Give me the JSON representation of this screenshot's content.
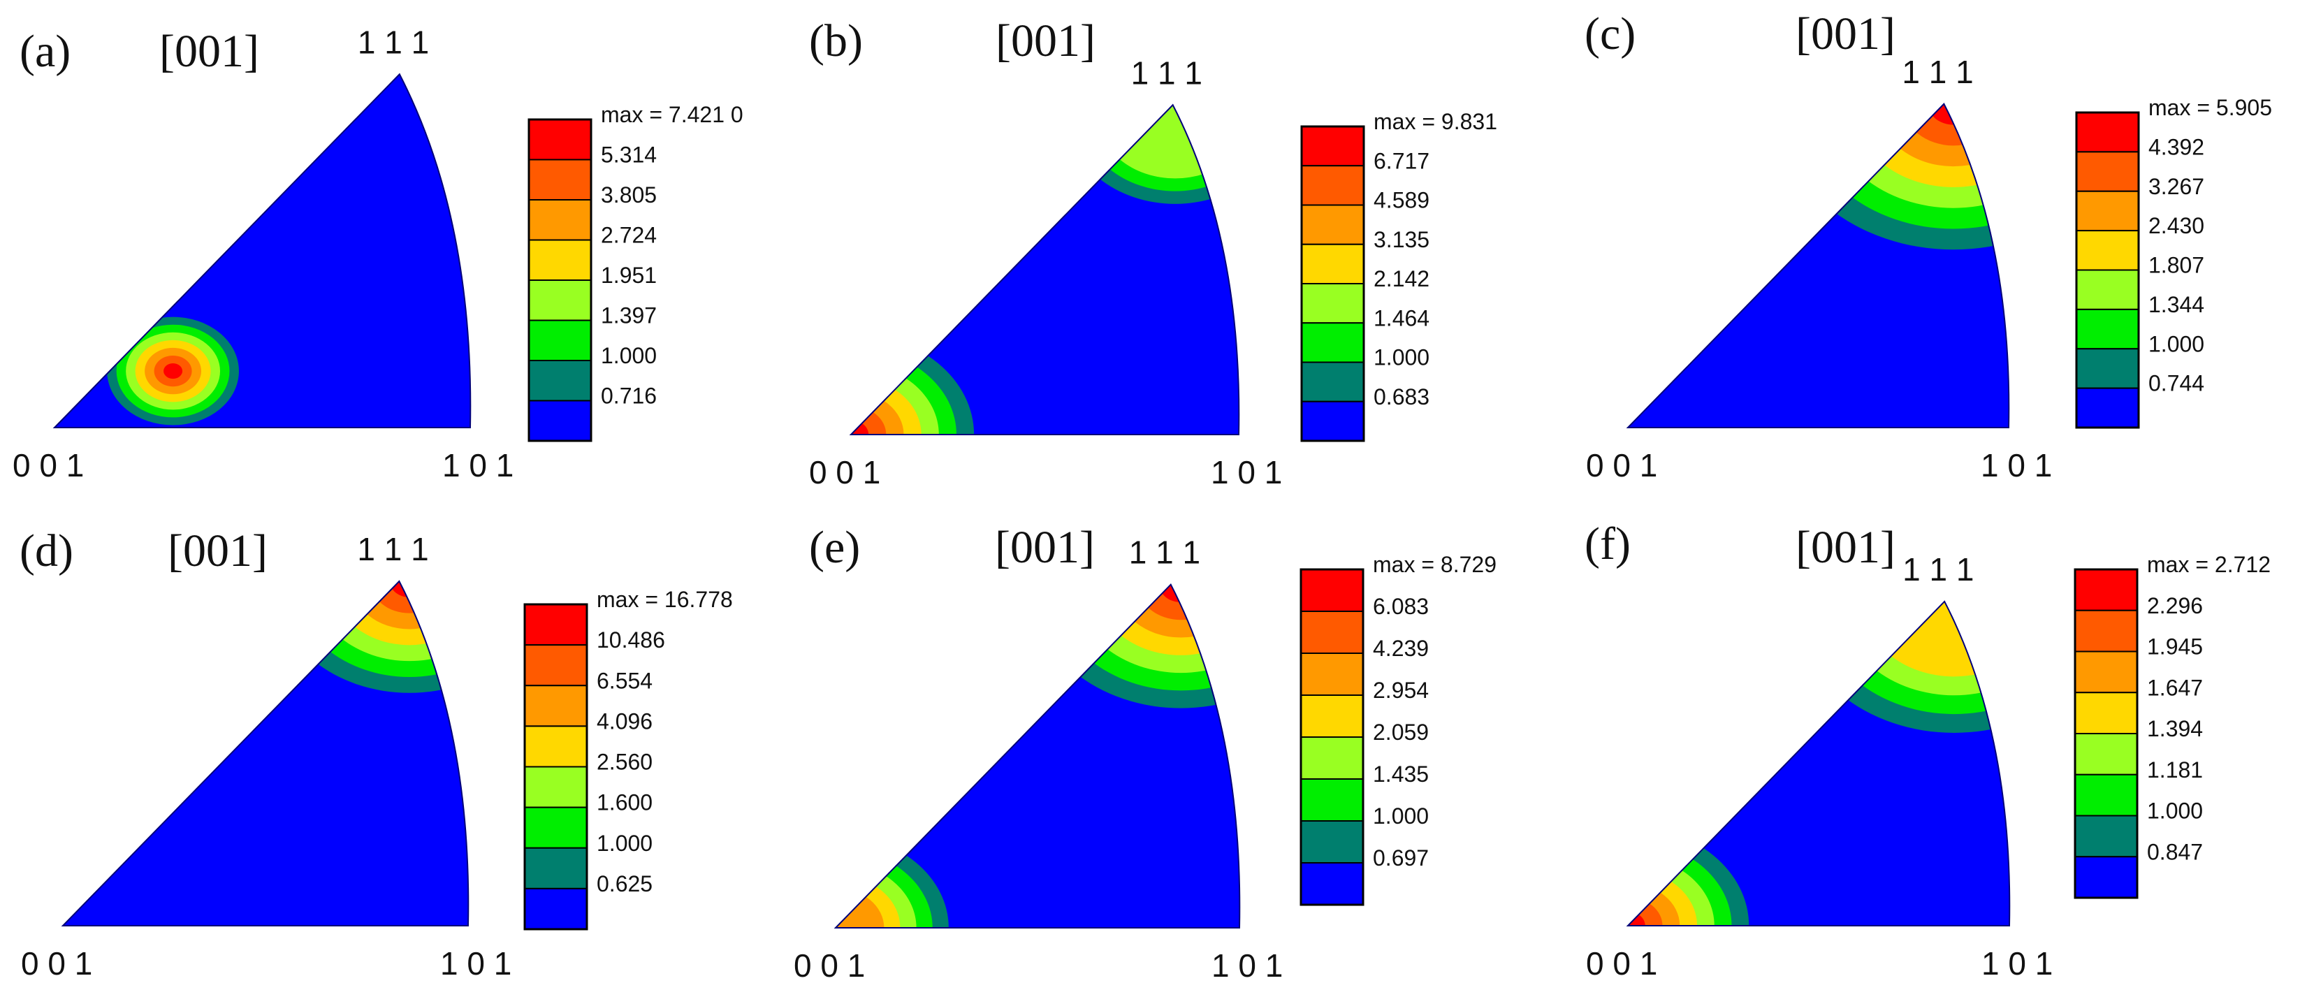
{
  "chart_data": [
    {
      "type": "inverse-pole-figure",
      "panel_label": "(a)",
      "direction": "[001]",
      "corner_labels": {
        "origin": "0 0 1",
        "right": "1 0 1",
        "top": "1 1 1"
      },
      "legend": [
        "max = 7.421 0",
        "5.314",
        "3.805",
        "2.724",
        "1.951",
        "1.397",
        "1.000",
        "0.716"
      ],
      "legend_colors": [
        "#ff0000",
        "#ff5a00",
        "#ff9900",
        "#ffd800",
        "#99ff22",
        "#00ee00",
        "#007f6e",
        "#0000ff"
      ],
      "max": 7.421,
      "peak": {
        "u": 0.3,
        "v": 0.16
      },
      "spread": 0.17
    },
    {
      "type": "inverse-pole-figure",
      "panel_label": "(b)",
      "direction": "[001]",
      "corner_labels": {
        "origin": "0 0 1",
        "right": "1 0 1",
        "top": "1 1 1"
      },
      "legend": [
        "max = 9.831",
        "6.717",
        "4.589",
        "3.135",
        "2.142",
        "1.464",
        "1.000",
        "0.683"
      ],
      "legend_colors": [
        "#ff0000",
        "#ff5a00",
        "#ff9900",
        "#ffd800",
        "#99ff22",
        "#00ee00",
        "#007f6e",
        "#0000ff"
      ],
      "max": 9.831,
      "peak": {
        "u": 0.0,
        "v": 0.0
      },
      "spread": 0.34,
      "secondary": {
        "u": 0.88,
        "v": 0.97,
        "spread": 0.3,
        "level": 4
      }
    },
    {
      "type": "inverse-pole-figure",
      "panel_label": "(c)",
      "direction": "[001]",
      "corner_labels": {
        "origin": "0 0 1",
        "right": "1 0 1",
        "top": "1 1 1"
      },
      "legend": [
        "max = 5.905",
        "4.392",
        "3.267",
        "2.430",
        "1.807",
        "1.344",
        "1.000",
        "0.744"
      ],
      "legend_colors": [
        "#ff0000",
        "#ff5a00",
        "#ff9900",
        "#ffd800",
        "#99ff22",
        "#00ee00",
        "#007f6e",
        "#0000ff"
      ],
      "max": 5.905,
      "peak": {
        "u": 0.9,
        "v": 1.0
      },
      "spread": 0.5
    },
    {
      "type": "inverse-pole-figure",
      "panel_label": "(d)",
      "direction": "[001]",
      "corner_labels": {
        "origin": "0 0 1",
        "right": "1 0 1",
        "top": "1 1 1"
      },
      "legend": [
        "max = 16.778",
        "10.486",
        "6.554",
        "4.096",
        "2.560",
        "1.600",
        "1.000",
        "0.625"
      ],
      "legend_colors": [
        "#ff0000",
        "#ff5a00",
        "#ff9900",
        "#ffd800",
        "#99ff22",
        "#00ee00",
        "#007f6e",
        "#0000ff"
      ],
      "max": 16.778,
      "peak": {
        "u": 0.9,
        "v": 1.0
      },
      "spread": 0.36
    },
    {
      "type": "inverse-pole-figure",
      "panel_label": "(e)",
      "direction": "[001]",
      "corner_labels": {
        "origin": "0 0 1",
        "right": "1 0 1",
        "top": "1 1 1"
      },
      "legend": [
        "max = 8.729",
        "6.083",
        "4.239",
        "2.954",
        "2.059",
        "1.435",
        "1.000",
        "0.697"
      ],
      "legend_colors": [
        "#ff0000",
        "#ff5a00",
        "#ff9900",
        "#ffd800",
        "#99ff22",
        "#00ee00",
        "#007f6e",
        "#0000ff"
      ],
      "max": 8.729,
      "peak": {
        "u": 0.9,
        "v": 1.0
      },
      "spread": 0.4,
      "secondary": {
        "u": 0.0,
        "v": 0.0,
        "spread": 0.3,
        "level": 2
      }
    },
    {
      "type": "inverse-pole-figure",
      "panel_label": "(f)",
      "direction": "[001]",
      "corner_labels": {
        "origin": "0 0 1",
        "right": "1 0 1",
        "top": "1 1 1"
      },
      "legend": [
        "max = 2.712",
        "2.296",
        "1.945",
        "1.647",
        "1.394",
        "1.181",
        "1.000",
        "0.847"
      ],
      "legend_colors": [
        "#ff0000",
        "#ff5a00",
        "#ff9900",
        "#ffd800",
        "#99ff22",
        "#00ee00",
        "#007f6e",
        "#0000ff"
      ],
      "max": 2.712,
      "peak": {
        "u": 0.0,
        "v": 0.0
      },
      "spread": 0.34,
      "secondary": {
        "u": 0.9,
        "v": 1.0,
        "spread": 0.45,
        "level": 3
      }
    }
  ]
}
